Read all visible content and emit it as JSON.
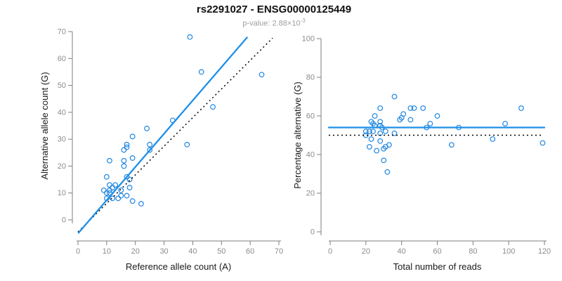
{
  "header": {
    "title": "rs2291027 - ENSG00000125449",
    "pvalue_text": "p-value: 2.88×10",
    "pvalue_exponent": "-3"
  },
  "colors": {
    "point": "#1f86e0",
    "fit_line": "#1e8fe8",
    "reference_line": "#000000",
    "axis": "#7f7f7f",
    "tick_text": "#8c8c8c",
    "axis_label_text": "#1a1a1a"
  },
  "chart_data": [
    {
      "type": "scatter",
      "panel": "left",
      "xlabel": "Reference allele count (A)",
      "ylabel": "Alternative allele count (G)",
      "xlim": [
        0,
        70
      ],
      "ylim": [
        0,
        70
      ],
      "xticks": [
        0,
        10,
        20,
        30,
        40,
        50,
        60,
        70
      ],
      "yticks": [
        0,
        10,
        20,
        30,
        40,
        50,
        60,
        70
      ],
      "grid": false,
      "points": [
        [
          10,
          16
        ],
        [
          17,
          16
        ],
        [
          18,
          15
        ],
        [
          11,
          13
        ],
        [
          13,
          13
        ],
        [
          9,
          11
        ],
        [
          11,
          11
        ],
        [
          12,
          12
        ],
        [
          15,
          11
        ],
        [
          18,
          12
        ],
        [
          10,
          10
        ],
        [
          11,
          10
        ],
        [
          10,
          8
        ],
        [
          12,
          8
        ],
        [
          14,
          8
        ],
        [
          15,
          9
        ],
        [
          17,
          9
        ],
        [
          19,
          7
        ],
        [
          22,
          6
        ],
        [
          11,
          22
        ],
        [
          16,
          22
        ],
        [
          16,
          20
        ],
        [
          19,
          23
        ],
        [
          16,
          26
        ],
        [
          17,
          27
        ],
        [
          17,
          28
        ],
        [
          19,
          31
        ],
        [
          24,
          34
        ],
        [
          25,
          28
        ],
        [
          25,
          26
        ],
        [
          33,
          37
        ],
        [
          38,
          28
        ],
        [
          39,
          68
        ],
        [
          43,
          55
        ],
        [
          64,
          54
        ],
        [
          47,
          42
        ]
      ],
      "fit_line": {
        "x1": 0.2,
        "y1": -4.8,
        "x2": 58.9,
        "y2": 67.8,
        "dashed": false
      },
      "reference_line": {
        "x1": 0.0,
        "y1": -4.5,
        "x2": 67.8,
        "y2": 67.6,
        "dashed": true
      }
    },
    {
      "type": "scatter",
      "panel": "right",
      "xlabel": "Total number of reads",
      "ylabel": "Percentage alternative (G)",
      "xlim": [
        0,
        120
      ],
      "ylim": [
        0,
        100
      ],
      "xticks": [
        0,
        20,
        40,
        60,
        80,
        100,
        120
      ],
      "yticks": [
        0,
        20,
        40,
        60,
        80,
        100
      ],
      "grid": false,
      "points": [
        [
          36,
          70
        ],
        [
          28,
          64
        ],
        [
          45,
          64
        ],
        [
          47,
          64
        ],
        [
          52,
          64
        ],
        [
          25,
          60
        ],
        [
          41,
          61
        ],
        [
          40,
          59
        ],
        [
          39,
          58
        ],
        [
          60,
          60
        ],
        [
          45,
          58
        ],
        [
          23,
          57
        ],
        [
          24,
          56
        ],
        [
          28,
          57
        ],
        [
          25,
          55
        ],
        [
          28,
          55
        ],
        [
          29,
          54
        ],
        [
          56,
          56
        ],
        [
          54,
          54
        ],
        [
          20,
          52
        ],
        [
          22,
          52
        ],
        [
          24,
          52
        ],
        [
          20,
          50
        ],
        [
          28,
          51
        ],
        [
          31,
          52
        ],
        [
          36,
          51
        ],
        [
          23,
          48
        ],
        [
          28,
          47
        ],
        [
          31,
          44
        ],
        [
          33,
          45
        ],
        [
          22,
          44
        ],
        [
          26,
          42
        ],
        [
          30,
          43
        ],
        [
          30,
          37
        ],
        [
          32,
          31
        ],
        [
          68,
          45
        ],
        [
          72,
          54
        ],
        [
          91,
          48
        ],
        [
          98,
          56
        ],
        [
          107,
          64
        ],
        [
          119,
          46
        ]
      ],
      "fit_line": {
        "x1": -0.8,
        "y1": 54,
        "x2": 120,
        "y2": 54,
        "dashed": false
      },
      "reference_line": {
        "x1": -0.8,
        "y1": 50,
        "x2": 118.5,
        "y2": 50,
        "dashed": true
      }
    }
  ]
}
